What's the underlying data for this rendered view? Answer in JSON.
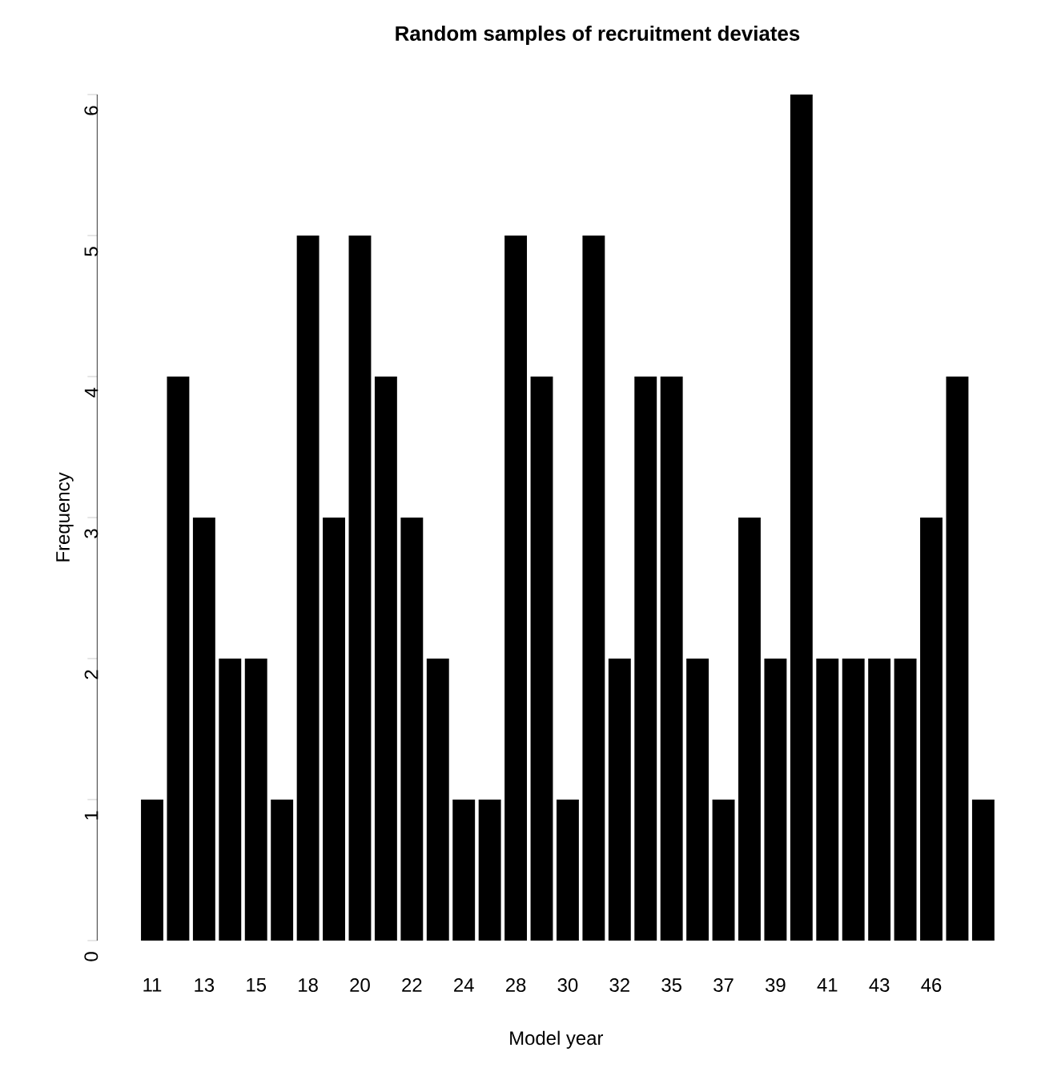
{
  "chart_data": {
    "type": "bar",
    "title": "Random samples of recruitment deviates",
    "xlabel": "Model year",
    "ylabel": "Frequency",
    "categories": [
      "11",
      null,
      "13",
      null,
      "15",
      null,
      "18",
      null,
      "20",
      null,
      "22",
      null,
      "24",
      null,
      "28",
      null,
      "30",
      null,
      "32",
      null,
      "35",
      null,
      "37",
      null,
      "39",
      null,
      "41",
      null,
      "43",
      null,
      "46",
      null,
      null
    ],
    "values": [
      1,
      4,
      3,
      2,
      2,
      1,
      5,
      3,
      5,
      4,
      3,
      2,
      1,
      1,
      5,
      4,
      1,
      5,
      2,
      4,
      4,
      2,
      1,
      3,
      2,
      6,
      2,
      2,
      2,
      2,
      3,
      4,
      1
    ],
    "color": "#000000",
    "ylim": [
      0,
      6
    ],
    "yticks": [
      0,
      1,
      2,
      3,
      4,
      5,
      6
    ],
    "grid": false
  }
}
